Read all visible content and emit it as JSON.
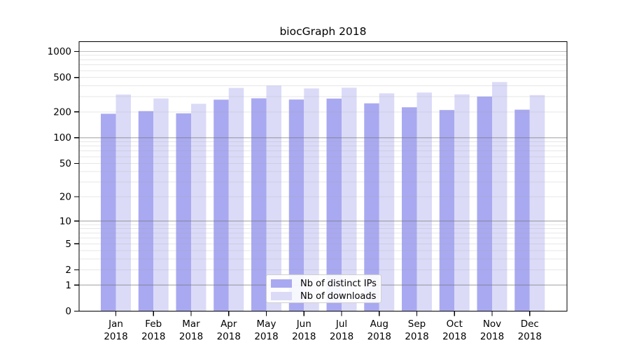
{
  "title": "biocGraph 2018",
  "legend": {
    "items": [
      {
        "label": "Nb of distinct IPs",
        "color": "#a9a9f1"
      },
      {
        "label": "Nb of downloads",
        "color": "#dbdbf8"
      }
    ]
  },
  "chart_data": {
    "type": "bar",
    "title": "biocGraph 2018",
    "categories": [
      "Jan 2018",
      "Feb 2018",
      "Mar 2018",
      "Apr 2018",
      "May 2018",
      "Jun 2018",
      "Jul 2018",
      "Aug 2018",
      "Sep 2018",
      "Oct 2018",
      "Nov 2018",
      "Dec 2018"
    ],
    "series": [
      {
        "name": "Nb of distinct IPs",
        "color": "#a9a9f1",
        "values": [
          190,
          204,
          192,
          277,
          287,
          278,
          285,
          251,
          226,
          210,
          301,
          212
        ]
      },
      {
        "name": "Nb of downloads",
        "color": "#dbdbf8",
        "values": [
          318,
          286,
          248,
          379,
          403,
          374,
          381,
          328,
          335,
          319,
          443,
          313
        ]
      }
    ],
    "xlabel": "",
    "ylabel": "",
    "yticks": [
      0,
      1,
      2,
      5,
      10,
      20,
      50,
      100,
      200,
      500,
      1000
    ],
    "yscale": "log10(1+x)",
    "ylim": [
      0,
      1300
    ],
    "grid": "horizontal log gridlines (minor + darker decade lines), drawn over bars",
    "legend_position": "inside, lower center"
  }
}
